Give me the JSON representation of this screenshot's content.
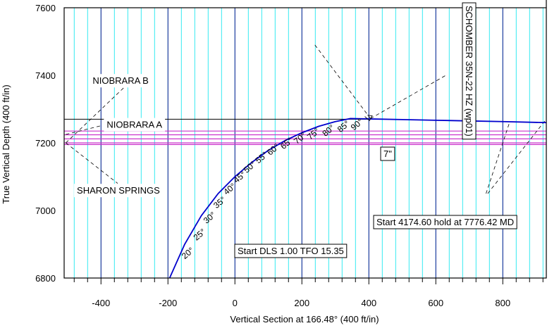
{
  "chart_data": {
    "type": "line",
    "xlabel": "Vertical Section at 166.48° (400 ft/in)",
    "ylabel": "True Vertical Depth (400 ft/in)",
    "xlim": [
      -510,
      930
    ],
    "ylim": [
      7600,
      6800
    ],
    "x_ticks": [
      -400,
      -200,
      0,
      200,
      400,
      600,
      800
    ],
    "y_ticks": [
      6800,
      7000,
      7200,
      7400,
      7600
    ],
    "grid": true,
    "colors": {
      "well_path": "#0000cc",
      "formation_lines": "#cc33cc",
      "grid_minor": "#00e5ee",
      "grid_major": "#000080"
    },
    "well_path": {
      "name": "SCHOMBER 35N-22 HZ (wp01)",
      "x": [
        -195,
        -150,
        -100,
        -50,
        0,
        50,
        100,
        150,
        200,
        250,
        300,
        345,
        400,
        500,
        600,
        700,
        800,
        930
      ],
      "y": [
        6800,
        6900,
        6985,
        7050,
        7100,
        7142,
        7178,
        7207,
        7230,
        7249,
        7263,
        7272,
        7271,
        7269,
        7267,
        7265,
        7263,
        7260
      ]
    },
    "formations": [
      {
        "name": "SHARON SPRINGS",
        "tvd": 7200,
        "label_x": -350,
        "label_y": 7060
      },
      {
        "name": "NIOBRARA A",
        "tvd": 7270,
        "label_x": -250,
        "label_y": 7260
      },
      {
        "name": "NIOBRARA B",
        "tvd": 7200,
        "label_x": -320,
        "label_y": 7385
      }
    ],
    "formation_lines_tvd": [
      7195,
      7200,
      7212,
      7224,
      7235
    ],
    "inclination_labels": [
      {
        "text": "20°",
        "x": -150,
        "y": 6855
      },
      {
        "text": "25°",
        "x": -115,
        "y": 6910
      },
      {
        "text": "30°",
        "x": -85,
        "y": 6960
      },
      {
        "text": "35°",
        "x": -55,
        "y": 7005
      },
      {
        "text": "40°",
        "x": -25,
        "y": 7045
      },
      {
        "text": "45°",
        "x": 5,
        "y": 7080
      },
      {
        "text": "50°",
        "x": 35,
        "y": 7110
      },
      {
        "text": "55°",
        "x": 70,
        "y": 7138
      },
      {
        "text": "60°",
        "x": 105,
        "y": 7162
      },
      {
        "text": "65°",
        "x": 145,
        "y": 7180
      },
      {
        "text": "70°",
        "x": 185,
        "y": 7195
      },
      {
        "text": "75°",
        "x": 225,
        "y": 7208
      },
      {
        "text": "80°",
        "x": 270,
        "y": 7218
      },
      {
        "text": "85°",
        "x": 315,
        "y": 7230
      },
      {
        "text": "90°",
        "x": 355,
        "y": 7236
      }
    ],
    "annotations": [
      {
        "text": "Start 4174.60 hold at 7776.42 MD",
        "x": 400,
        "y": 7272
      },
      {
        "text": "Start DLS 1.00 TFO 15.35",
        "x": 400,
        "y": 7272
      },
      {
        "text": "7\"",
        "x": 400,
        "y": 7245
      }
    ]
  }
}
